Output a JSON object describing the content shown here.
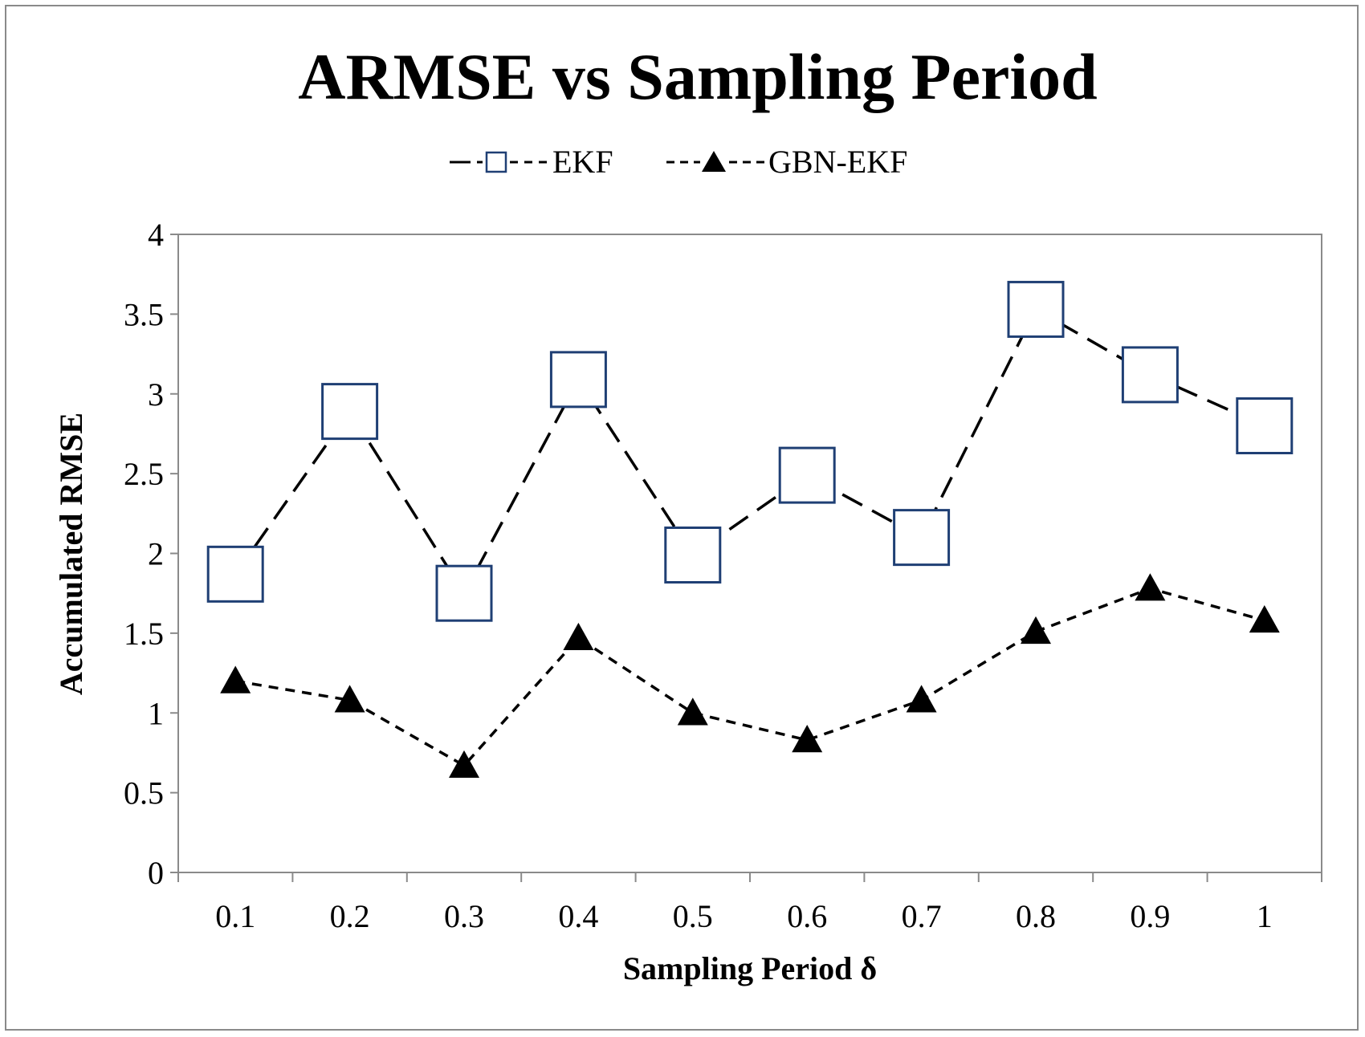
{
  "chart_data": {
    "type": "line",
    "title": "ARMSE vs Sampling Period",
    "xlabel": "Sampling Period δ",
    "ylabel": "Accumulated RMSE",
    "categories": [
      "0.1",
      "0.2",
      "0.3",
      "0.4",
      "0.5",
      "0.6",
      "0.7",
      "0.8",
      "0.9",
      "1"
    ],
    "yticks": [
      "0",
      "0.5",
      "1",
      "1.5",
      "2",
      "2.5",
      "3",
      "3.5",
      "4"
    ],
    "ylim": [
      0,
      4
    ],
    "grid": false,
    "legend_position": "top-center",
    "series": [
      {
        "name": "EKF",
        "marker": "square-open",
        "line_style": "long-dash",
        "marker_color": "#1f3f74",
        "line_color": "#000000",
        "values": [
          1.87,
          2.89,
          1.75,
          3.09,
          1.99,
          2.49,
          2.1,
          3.53,
          3.12,
          2.8
        ]
      },
      {
        "name": "GBN-EKF",
        "marker": "triangle-filled",
        "line_style": "short-dash",
        "marker_color": "#000000",
        "line_color": "#000000",
        "values": [
          1.2,
          1.08,
          0.67,
          1.47,
          1.0,
          0.83,
          1.08,
          1.51,
          1.78,
          1.58
        ]
      }
    ]
  }
}
